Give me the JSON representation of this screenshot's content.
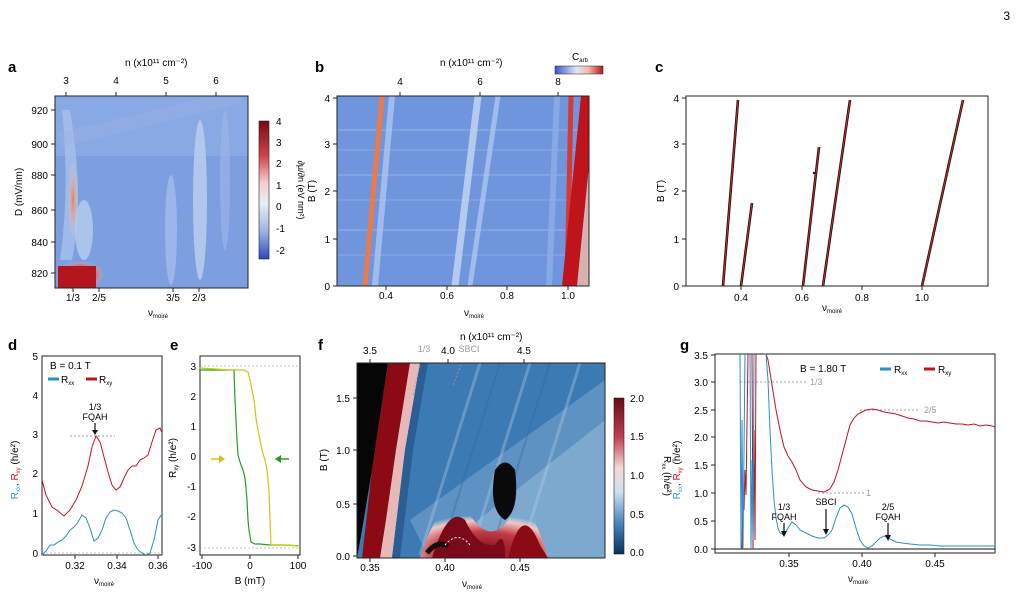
{
  "page_number": "3",
  "panels": {
    "a": {
      "label": "a",
      "top_axis": {
        "title": "n (x10¹¹ cm⁻²)",
        "ticks": [
          "3",
          "4",
          "5",
          "6"
        ]
      },
      "y_axis": {
        "title": "D (mV/nm)",
        "ticks": [
          "820",
          "840",
          "860",
          "880",
          "900",
          "920"
        ]
      },
      "x_axis": {
        "title": "ν",
        "title_sub": "moiré",
        "ticks": [
          "1/3",
          "2/5",
          "3/5",
          "2/3"
        ]
      },
      "colorbar": {
        "title": "∂μ/∂n (eV nm²)",
        "ticks": [
          "4",
          "3",
          "2",
          "1",
          "0",
          "-1",
          "-2"
        ]
      }
    },
    "b": {
      "label": "b",
      "top_axis": {
        "title": "n (x10¹¹ cm⁻²)",
        "ticks": [
          "4",
          "6",
          "8"
        ]
      },
      "y_axis": {
        "title": "B (T)",
        "ticks": [
          "0",
          "1",
          "2",
          "3",
          "4"
        ]
      },
      "x_axis": {
        "title": "ν",
        "title_sub": "moiré",
        "ticks": [
          "0.4",
          "0.6",
          "0.8",
          "1.0"
        ]
      },
      "colorbar": {
        "title": "C",
        "title_sub": "arb"
      }
    },
    "c": {
      "label": "c",
      "y_axis": {
        "title": "B (T)",
        "ticks": [
          "0",
          "1",
          "2",
          "3",
          "4"
        ]
      },
      "x_axis": {
        "title": "ν",
        "title_sub": "moiré",
        "ticks": [
          "0.4",
          "0.6",
          "0.8",
          "1.0"
        ]
      }
    },
    "d": {
      "label": "d",
      "annotation": "B = 0.1 T",
      "legend": [
        {
          "name": "R",
          "sub": "xx",
          "color": "#2a8ec8"
        },
        {
          "name": "R",
          "sub": "xy",
          "color": "#c0141c"
        }
      ],
      "y_axis": {
        "title_xx": "R",
        "title_xx_sub": "xx",
        "title_sep": ", ",
        "title_xy": "R",
        "title_xy_sub": "xy",
        "title_unit": " (h/e²)",
        "ticks": [
          "0",
          "1",
          "2",
          "3",
          "4",
          "5"
        ]
      },
      "x_axis": {
        "title": "ν",
        "title_sub": "moiré",
        "ticks": [
          "0.32",
          "0.34",
          "0.36"
        ]
      },
      "marker_label_1": "1/3",
      "marker_label_2": "FQAH"
    },
    "e": {
      "label": "e",
      "y_axis": {
        "title": "R",
        "title_sub": "xy",
        "title_unit": " (h/e²)",
        "ticks": [
          "-3",
          "-2",
          "-1",
          "0",
          "1",
          "2",
          "3"
        ]
      },
      "x_axis": {
        "title": "B (mT)",
        "ticks": [
          "-100",
          "0",
          "100"
        ]
      },
      "arrow_up_color": "#c8c814",
      "arrow_down_color": "#2a9a1e"
    },
    "f": {
      "label": "f",
      "top_axis": {
        "title": "n (x10¹¹ cm⁻²)",
        "ticks": [
          "3.5",
          "4.0",
          "4.5"
        ]
      },
      "y_axis": {
        "title": "B (T)",
        "ticks": [
          "0.0",
          "0.5",
          "1.0",
          "1.5"
        ]
      },
      "x_axis": {
        "title": "ν",
        "title_sub": "moiré",
        "ticks": [
          "0.35",
          "0.40",
          "0.45"
        ]
      },
      "annotations": [
        "1/3",
        "SBCI"
      ],
      "colorbar": {
        "title": "R",
        "title_sub": "xx",
        "title_unit": " (h/e²)",
        "ticks": [
          "2.0",
          "1.5",
          "1.0",
          "0.5",
          "0.0"
        ]
      }
    },
    "g": {
      "label": "g",
      "annotation": "B = 1.80 T",
      "legend": [
        {
          "name": "R",
          "sub": "xx",
          "color": "#2a8ec8"
        },
        {
          "name": "R",
          "sub": "xy",
          "color": "#c0141c"
        }
      ],
      "y_axis": {
        "title_xx": "R",
        "title_xx_sub": "xx",
        "title_sep": ", ",
        "title_xy": "R",
        "title_xy_sub": "xy",
        "title_unit": " (h/e²)",
        "ticks": [
          "0.0",
          "0.5",
          "1.0",
          "1.5",
          "2.0",
          "2.5",
          "3.0",
          "3.5"
        ]
      },
      "x_axis": {
        "title": "ν",
        "title_sub": "moiré",
        "ticks": [
          "0.35",
          "0.40",
          "0.45"
        ]
      },
      "plateau_labels": [
        "1/3",
        "1",
        "2/5"
      ],
      "marker_labels": [
        {
          "line1": "1/3",
          "line2": "FQAH"
        },
        {
          "line1": "SBCI",
          "line2": ""
        },
        {
          "line1": "2/5",
          "line2": "FQAH"
        }
      ]
    }
  }
}
